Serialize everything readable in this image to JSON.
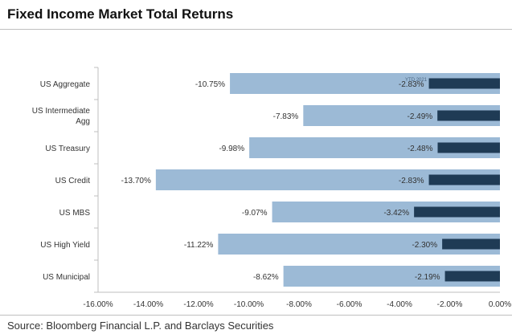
{
  "title": "Fixed Income Market Total Returns",
  "source": "Source: Bloomberg Financial L.P. and Barclays Securities",
  "colors": {
    "light_bar": "#9cbad6",
    "dark_bar": "#1f3b55",
    "axis": "#bfbfbf",
    "text": "#333333"
  },
  "chart_data": {
    "type": "bar",
    "orientation": "horizontal",
    "categories": [
      "US Aggregate",
      "US Intermediate Agg",
      "US Treasury",
      "US Credit",
      "US MBS",
      "US High Yield",
      "US Municipal"
    ],
    "series": [
      {
        "values": [
          -10.75,
          -7.83,
          -9.98,
          -13.7,
          -9.07,
          -11.22,
          -8.62
        ],
        "labels": [
          "-10.75%",
          "-7.83%",
          "-9.98%",
          "-13.70%",
          "-9.07%",
          "-11.22%",
          "-8.62%"
        ]
      },
      {
        "values": [
          -2.83,
          -2.49,
          -2.48,
          -2.83,
          -3.42,
          -2.3,
          -2.19
        ],
        "labels": [
          "-2.83%",
          "-2.49%",
          "-2.48%",
          "-2.83%",
          "-3.42%",
          "-2.30%",
          "-2.19%"
        ]
      }
    ],
    "annotations": [
      "YTD 2021"
    ],
    "xlim": [
      -16,
      0
    ],
    "xticks": [
      -16,
      -14,
      -12,
      -10,
      -8,
      -6,
      -4,
      -2,
      0
    ],
    "xtick_labels": [
      "-16.00%",
      "-14.00%",
      "-12.00%",
      "-10.00%",
      "-8.00%",
      "-6.00%",
      "-4.00%",
      "-2.00%",
      "0.00%"
    ],
    "grid": false,
    "legend": "none"
  }
}
